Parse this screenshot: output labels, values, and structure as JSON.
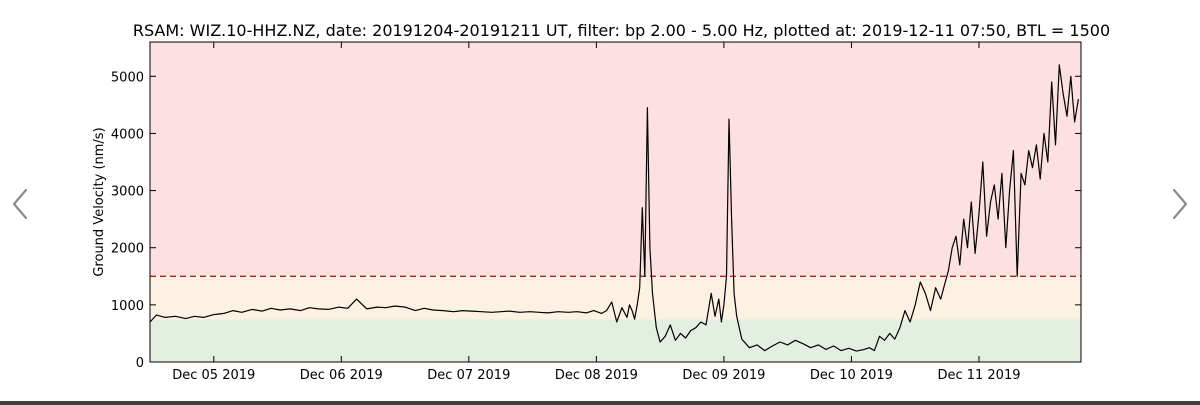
{
  "navigation": {
    "prev_icon": "chevron-left-icon",
    "next_icon": "chevron-right-icon",
    "arrow_color": "#8a8a8a"
  },
  "chart_data": {
    "type": "line",
    "title": "RSAM: WIZ.10-HHZ.NZ, date: 20191204-20191211 UT, filter: bp 2.00 - 5.00 Hz, plotted at: 2019-12-11 07:50, BTL = 1500",
    "xlabel": "",
    "ylabel": "Ground Velocity (nm/s)",
    "x_unit": "days since Dec 04 2019 00:00 UT",
    "xlim": [
      0.5,
      7.8
    ],
    "ylim": [
      0,
      5600
    ],
    "x_ticks": [
      {
        "x": 1,
        "label": "Dec 05 2019"
      },
      {
        "x": 2,
        "label": "Dec 06 2019"
      },
      {
        "x": 3,
        "label": "Dec 07 2019"
      },
      {
        "x": 4,
        "label": "Dec 08 2019"
      },
      {
        "x": 5,
        "label": "Dec 09 2019"
      },
      {
        "x": 6,
        "label": "Dec 10 2019"
      },
      {
        "x": 7,
        "label": "Dec 11 2019"
      }
    ],
    "y_ticks": [
      0,
      1000,
      2000,
      3000,
      4000,
      5000
    ],
    "grid": false,
    "background_bands": [
      {
        "from": 0,
        "to": 750,
        "color": "#e3f0e1"
      },
      {
        "from": 750,
        "to": 1500,
        "color": "#fdf1e1"
      },
      {
        "from": 1500,
        "to": 5600,
        "color": "#fde0e1"
      }
    ],
    "threshold": {
      "value": 1500,
      "label": "BTL = 1500",
      "color": "#b22222",
      "style": "dashed"
    },
    "series": [
      {
        "name": "",
        "color": "#000000",
        "x": [
          0.5,
          0.55,
          0.62,
          0.7,
          0.78,
          0.85,
          0.92,
          1.0,
          1.08,
          1.15,
          1.22,
          1.3,
          1.38,
          1.45,
          1.52,
          1.6,
          1.68,
          1.75,
          1.82,
          1.9,
          1.98,
          2.05,
          2.12,
          2.2,
          2.28,
          2.35,
          2.42,
          2.5,
          2.58,
          2.65,
          2.72,
          2.8,
          2.88,
          2.95,
          3.02,
          3.1,
          3.18,
          3.25,
          3.32,
          3.4,
          3.48,
          3.55,
          3.62,
          3.7,
          3.78,
          3.85,
          3.92,
          3.98,
          4.04,
          4.08,
          4.12,
          4.16,
          4.2,
          4.24,
          4.26,
          4.28,
          4.3,
          4.32,
          4.34,
          4.36,
          4.38,
          4.4,
          4.42,
          4.44,
          4.47,
          4.5,
          4.54,
          4.58,
          4.62,
          4.66,
          4.7,
          4.74,
          4.78,
          4.82,
          4.86,
          4.9,
          4.93,
          4.96,
          4.98,
          5.0,
          5.02,
          5.04,
          5.06,
          5.08,
          5.1,
          5.14,
          5.2,
          5.26,
          5.32,
          5.38,
          5.44,
          5.5,
          5.56,
          5.62,
          5.68,
          5.74,
          5.8,
          5.86,
          5.92,
          5.98,
          6.04,
          6.1,
          6.14,
          6.18,
          6.22,
          6.26,
          6.3,
          6.34,
          6.38,
          6.42,
          6.46,
          6.5,
          6.54,
          6.58,
          6.62,
          6.66,
          6.7,
          6.73,
          6.76,
          6.79,
          6.82,
          6.85,
          6.88,
          6.91,
          6.94,
          6.97,
          7.0,
          7.03,
          7.06,
          7.09,
          7.12,
          7.15,
          7.18,
          7.21,
          7.24,
          7.27,
          7.3,
          7.33,
          7.36,
          7.39,
          7.42,
          7.45,
          7.48,
          7.51,
          7.54,
          7.57,
          7.6,
          7.63,
          7.66,
          7.69,
          7.72,
          7.75,
          7.78
        ],
        "y": [
          700,
          820,
          780,
          800,
          760,
          800,
          780,
          830,
          850,
          900,
          870,
          920,
          890,
          940,
          910,
          930,
          900,
          950,
          930,
          920,
          960,
          940,
          1100,
          930,
          960,
          950,
          980,
          960,
          900,
          940,
          910,
          900,
          880,
          900,
          890,
          880,
          870,
          880,
          890,
          870,
          880,
          870,
          860,
          880,
          870,
          880,
          860,
          900,
          850,
          900,
          1050,
          700,
          950,
          780,
          1000,
          900,
          750,
          1000,
          1300,
          2700,
          1500,
          4450,
          2000,
          1200,
          600,
          350,
          450,
          650,
          380,
          500,
          420,
          550,
          600,
          700,
          650,
          1200,
          800,
          1100,
          700,
          1000,
          1500,
          4250,
          2500,
          1200,
          800,
          400,
          250,
          300,
          200,
          280,
          350,
          300,
          380,
          320,
          250,
          300,
          220,
          280,
          200,
          240,
          190,
          220,
          250,
          200,
          450,
          380,
          500,
          400,
          600,
          900,
          700,
          1000,
          1400,
          1200,
          900,
          1300,
          1100,
          1350,
          1600,
          2000,
          2200,
          1700,
          2500,
          2000,
          2800,
          1900,
          2600,
          3500,
          2200,
          2800,
          3100,
          2500,
          3300,
          2000,
          3000,
          3700,
          1500,
          3300,
          3100,
          3700,
          3400,
          3800,
          3200,
          4000,
          3500,
          4900,
          3800,
          5200,
          4700,
          4300,
          5000,
          4200,
          4600
        ]
      }
    ]
  }
}
